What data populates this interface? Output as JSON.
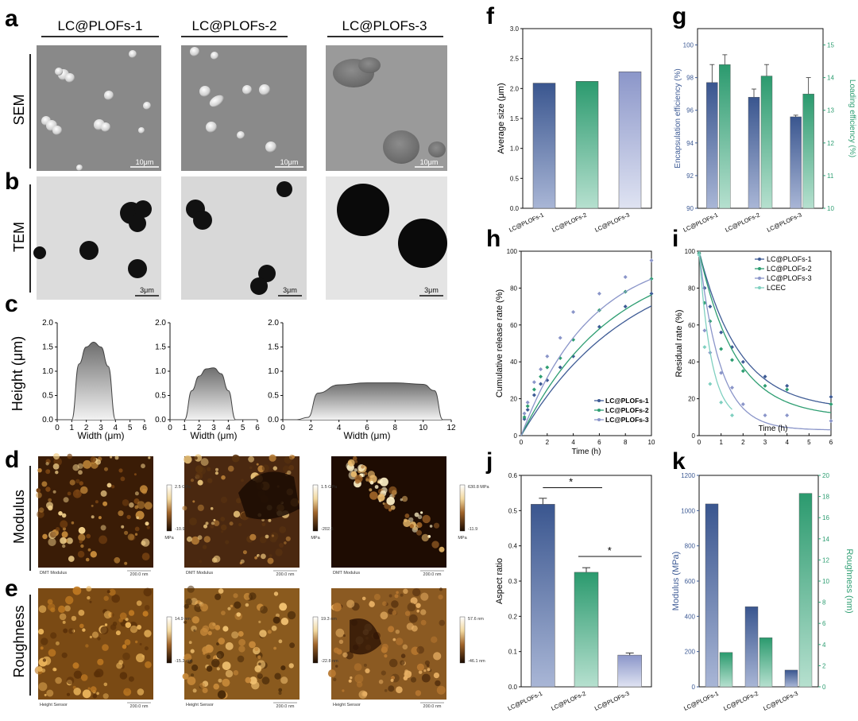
{
  "panel_letters": {
    "a": "a",
    "b": "b",
    "c": "c",
    "d": "d",
    "e": "e",
    "f": "f",
    "g": "g",
    "h": "h",
    "i": "i",
    "j": "j",
    "k": "k"
  },
  "colors": {
    "s1": "#3e5b95",
    "s2": "#2e9e72",
    "s3": "#8a95c9",
    "lcec": "#7fd0c0",
    "gray": "#8a8a8a"
  },
  "micro": {
    "columns": [
      "LC@PLOFs-1",
      "LC@PLOFs-2",
      "LC@PLOFs-3"
    ],
    "rows": {
      "sem": "SEM",
      "tem": "TEM",
      "height": "Height (μm)",
      "modulus": "Modulus",
      "roughness": "Roughness"
    },
    "sem_scale": "10μm",
    "tem_scale": "3μm",
    "afm": {
      "modulus_labels": [
        "DMT Modulus",
        "DMT Modulus",
        "DMT Modulus"
      ],
      "roughness_labels": [
        "Height Sensor",
        "Height Sensor",
        "Height Sensor"
      ],
      "scale": "200.0 nm",
      "modulus_max": [
        "2.5 GPa",
        "1.5 GPa",
        "630.8 MPa"
      ],
      "modulus_min": [
        "-10.9",
        "-202.5",
        "-11.9"
      ],
      "modulus_unit": "MPa",
      "rough_max": [
        "14.9 nm",
        "19.3 nm",
        "57.6 nm"
      ],
      "rough_min": [
        "-15.2 nm",
        "-22.8 nm",
        "-46.1 nm"
      ]
    }
  },
  "chart_data": [
    {
      "id": "c",
      "type": "area",
      "ylabel": "Height (μm)",
      "xlabel": "Width (μm)",
      "profiles": [
        {
          "x": [
            0,
            1,
            1.5,
            2,
            2.5,
            3,
            3.5,
            4,
            4.5,
            6
          ],
          "y": [
            0,
            0,
            1.15,
            1.5,
            1.6,
            1.5,
            1.1,
            0,
            0,
            0
          ],
          "xlim": [
            0,
            6
          ],
          "xticks": [
            0,
            1,
            2,
            3,
            4,
            5,
            6
          ]
        },
        {
          "x": [
            0,
            1,
            1.5,
            2,
            2.5,
            3,
            3.5,
            4,
            4.5,
            6
          ],
          "y": [
            0,
            0,
            0.6,
            0.9,
            1.05,
            1.07,
            0.95,
            0.6,
            0,
            0
          ],
          "xlim": [
            0,
            6
          ],
          "xticks": [
            0,
            1,
            2,
            3,
            4,
            5,
            6
          ]
        },
        {
          "x": [
            0,
            1,
            1.8,
            2.5,
            4,
            6,
            8,
            10,
            10.8,
            11.4,
            12
          ],
          "y": [
            0,
            0,
            0.05,
            0.55,
            0.72,
            0.76,
            0.76,
            0.73,
            0.6,
            0,
            0
          ],
          "xlim": [
            0,
            12
          ],
          "xticks": [
            0,
            2,
            4,
            6,
            8,
            10,
            12
          ]
        }
      ],
      "ylim": [
        0,
        2.0
      ],
      "yticks": [
        "0.0",
        "0.5",
        "1.0",
        "1.5",
        "2.0"
      ]
    },
    {
      "id": "f",
      "type": "bar",
      "categories": [
        "LC@PLOFs-1",
        "LC@PLOFs-2",
        "LC@PLOFs-3"
      ],
      "values": [
        2.09,
        2.12,
        2.28
      ],
      "ylabel": "Average size (μm)",
      "ylim": [
        0,
        3.0
      ],
      "yticks": [
        "0.0",
        "0.5",
        "1.0",
        "1.5",
        "2.0",
        "2.5",
        "3.0"
      ]
    },
    {
      "id": "g",
      "type": "bar",
      "categories": [
        "LC@PLOFs-1",
        "LC@PLOFs-2",
        "LC@PLOFs-3"
      ],
      "series": [
        {
          "name": "Encapsulation efficiency (%)",
          "values": [
            97.7,
            96.8,
            95.6
          ],
          "errors": [
            1.1,
            0.5,
            0.1
          ],
          "axis": "left"
        },
        {
          "name": "Loading efficiency (%)",
          "values": [
            14.4,
            14.05,
            13.5
          ],
          "errors": [
            0.3,
            0.35,
            0.5
          ],
          "axis": "right"
        }
      ],
      "ylabel": "Encapsulation efficiency (%)",
      "y2label": "Loading efficiency (%)",
      "ylim": [
        90,
        101
      ],
      "yticks": [
        90,
        92,
        94,
        96,
        98,
        100
      ],
      "y2lim": [
        10,
        15.5
      ],
      "y2ticks": [
        10,
        11,
        12,
        13,
        14,
        15
      ]
    },
    {
      "id": "h",
      "type": "scatter",
      "xlabel": "Time (h)",
      "ylabel": "Cumulative release rate (%)",
      "xlim": [
        0,
        10
      ],
      "xticks": [
        0,
        2,
        4,
        6,
        8,
        10
      ],
      "ylim": [
        0,
        100
      ],
      "yticks": [
        0,
        20,
        40,
        60,
        80,
        100
      ],
      "legend": "bottom-right",
      "series": [
        {
          "name": "LC@PLOFs-1",
          "x": [
            0.25,
            0.5,
            1,
            1.5,
            2,
            3,
            4,
            6,
            8,
            10
          ],
          "y": [
            9,
            14,
            22,
            28,
            30,
            37,
            43,
            59,
            70,
            77
          ],
          "k": 0.135
        },
        {
          "name": "LC@PLOFs-2",
          "x": [
            0.25,
            0.5,
            1,
            1.5,
            2,
            3,
            4,
            6,
            8,
            10
          ],
          "y": [
            10,
            16,
            25,
            32,
            37,
            42,
            52,
            68,
            78,
            85
          ],
          "k": 0.16
        },
        {
          "name": "LC@PLOFs-3",
          "x": [
            0.25,
            0.5,
            1,
            1.5,
            2,
            3,
            4,
            6,
            8,
            10
          ],
          "y": [
            12,
            18,
            29,
            36,
            43,
            53,
            67,
            77,
            86,
            95
          ],
          "k": 0.21
        }
      ]
    },
    {
      "id": "i",
      "type": "scatter",
      "xlabel": "Time (h)",
      "ylabel": "Residual rate (%)",
      "xlim": [
        0,
        6
      ],
      "xticks": [
        0,
        1,
        2,
        3,
        4,
        5,
        6
      ],
      "ylim": [
        0,
        100
      ],
      "yticks": [
        0,
        20,
        40,
        60,
        80,
        100
      ],
      "legend": "top-right",
      "series": [
        {
          "name": "LC@PLOFs-1",
          "x": [
            0,
            0.25,
            0.5,
            1,
            1.5,
            2,
            3,
            4,
            6
          ],
          "y": [
            99,
            80,
            70,
            56,
            48,
            40,
            32,
            27,
            21
          ]
        },
        {
          "name": "LC@PLOFs-2",
          "x": [
            0,
            0.25,
            0.5,
            1,
            1.5,
            2,
            3,
            4,
            6
          ],
          "y": [
            99,
            72,
            62,
            47,
            41,
            35,
            27,
            25,
            17
          ]
        },
        {
          "name": "LC@PLOFs-3",
          "x": [
            0,
            0.25,
            0.5,
            1,
            1.5,
            2,
            3,
            4,
            6
          ],
          "y": [
            98,
            57,
            45,
            34,
            26,
            17,
            11,
            11,
            8
          ]
        },
        {
          "name": "LCEC",
          "x": [
            0,
            0.25,
            0.5,
            1,
            1.5
          ],
          "y": [
            98,
            48,
            28,
            18,
            11
          ]
        }
      ]
    },
    {
      "id": "j",
      "type": "bar",
      "categories": [
        "LC@PLOFs-1",
        "LC@PLOFs-2",
        "LC@PLOFs-3"
      ],
      "values": [
        0.518,
        0.325,
        0.09
      ],
      "errors": [
        0.017,
        0.013,
        0.006
      ],
      "ylabel": "Aspect ratio",
      "ylim": [
        0,
        0.6
      ],
      "yticks": [
        "0.0",
        "0.1",
        "0.2",
        "0.3",
        "0.4",
        "0.5",
        "0.6"
      ],
      "annotations": [
        "*",
        "*"
      ]
    },
    {
      "id": "k",
      "type": "bar",
      "categories": [
        "LC@PLOFs-1",
        "LC@PLOFs-2",
        "LC@PLOFs-3"
      ],
      "series": [
        {
          "name": "Modulus (MPa)",
          "values": [
            1038,
            455,
            95
          ],
          "axis": "left"
        },
        {
          "name": "Roughness (nm)",
          "values": [
            3.25,
            4.65,
            18.3
          ],
          "axis": "right"
        }
      ],
      "ylabel": "Modulus (MPa)",
      "y2label": "Roughness (nm)",
      "ylim": [
        0,
        1200
      ],
      "yticks": [
        0,
        200,
        400,
        600,
        800,
        1000,
        1200
      ],
      "y2lim": [
        0,
        20
      ],
      "y2ticks": [
        0,
        2,
        4,
        6,
        8,
        10,
        12,
        14,
        16,
        18,
        20
      ]
    }
  ]
}
